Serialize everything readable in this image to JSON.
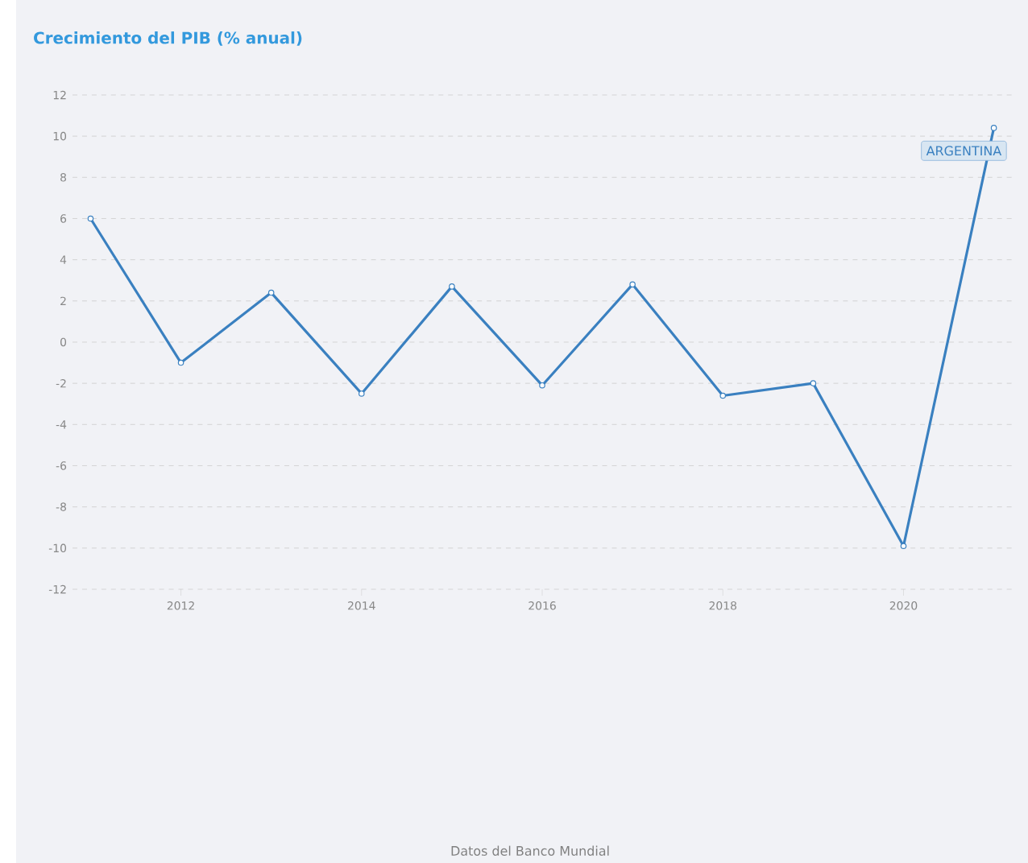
{
  "chart_data": {
    "type": "line",
    "title": "Crecimiento del PIB (% anual)",
    "annotations": [
      "Datos del Banco Mundial"
    ],
    "x": [
      2011,
      2012,
      2013,
      2014,
      2015,
      2016,
      2017,
      2018,
      2019,
      2020,
      2021
    ],
    "series": [
      {
        "name": "ARGENTINA",
        "color": "#3a80c0",
        "values": [
          6.0,
          -1.0,
          2.4,
          -2.5,
          2.7,
          -2.1,
          2.8,
          -2.6,
          -2.0,
          -9.9,
          10.4
        ]
      }
    ],
    "xlim": [
      2010.8,
      2021.2
    ],
    "ylim": [
      -12,
      12
    ],
    "xticks": [
      2012,
      2014,
      2016,
      2018,
      2020
    ],
    "yticks": [
      -12,
      -10,
      -8,
      -6,
      -4,
      -2,
      0,
      2,
      4,
      6,
      8,
      10,
      12
    ],
    "grid": "y",
    "marker": "circle",
    "line_style": "solid",
    "legend": false
  }
}
